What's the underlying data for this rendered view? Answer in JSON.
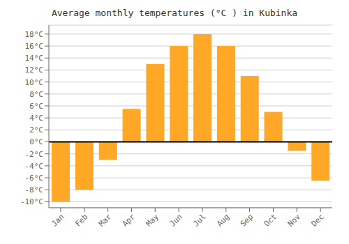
{
  "chart_data": {
    "type": "bar",
    "title": "Average monthly temperatures (°C ) in Kubinka",
    "categories": [
      "Jan",
      "Feb",
      "Mar",
      "Apr",
      "May",
      "Jun",
      "Jul",
      "Aug",
      "Sep",
      "Oct",
      "Nov",
      "Dec"
    ],
    "values": [
      -10,
      -8,
      -3,
      5.5,
      13,
      16,
      18,
      16,
      11,
      5,
      -1.5,
      -6.5
    ],
    "color": "#FFA726",
    "ylim": [
      -11,
      19.5
    ],
    "yticks": [
      {
        "value": -10,
        "label": "-10°C"
      },
      {
        "value": -8,
        "label": "-8°C"
      },
      {
        "value": -6,
        "label": "-6°C"
      },
      {
        "value": -4,
        "label": "-4°C"
      },
      {
        "value": -2,
        "label": "-2°C"
      },
      {
        "value": 0,
        "label": "0°C"
      },
      {
        "value": 2,
        "label": "2°C"
      },
      {
        "value": 4,
        "label": "4°C"
      },
      {
        "value": 6,
        "label": "6°C"
      },
      {
        "value": 8,
        "label": "8°C"
      },
      {
        "value": 10,
        "label": "10°C"
      },
      {
        "value": 12,
        "label": "12°C"
      },
      {
        "value": 14,
        "label": "14°C"
      },
      {
        "value": 16,
        "label": "16°C"
      },
      {
        "value": 18,
        "label": "18°C"
      }
    ],
    "grid": true
  }
}
